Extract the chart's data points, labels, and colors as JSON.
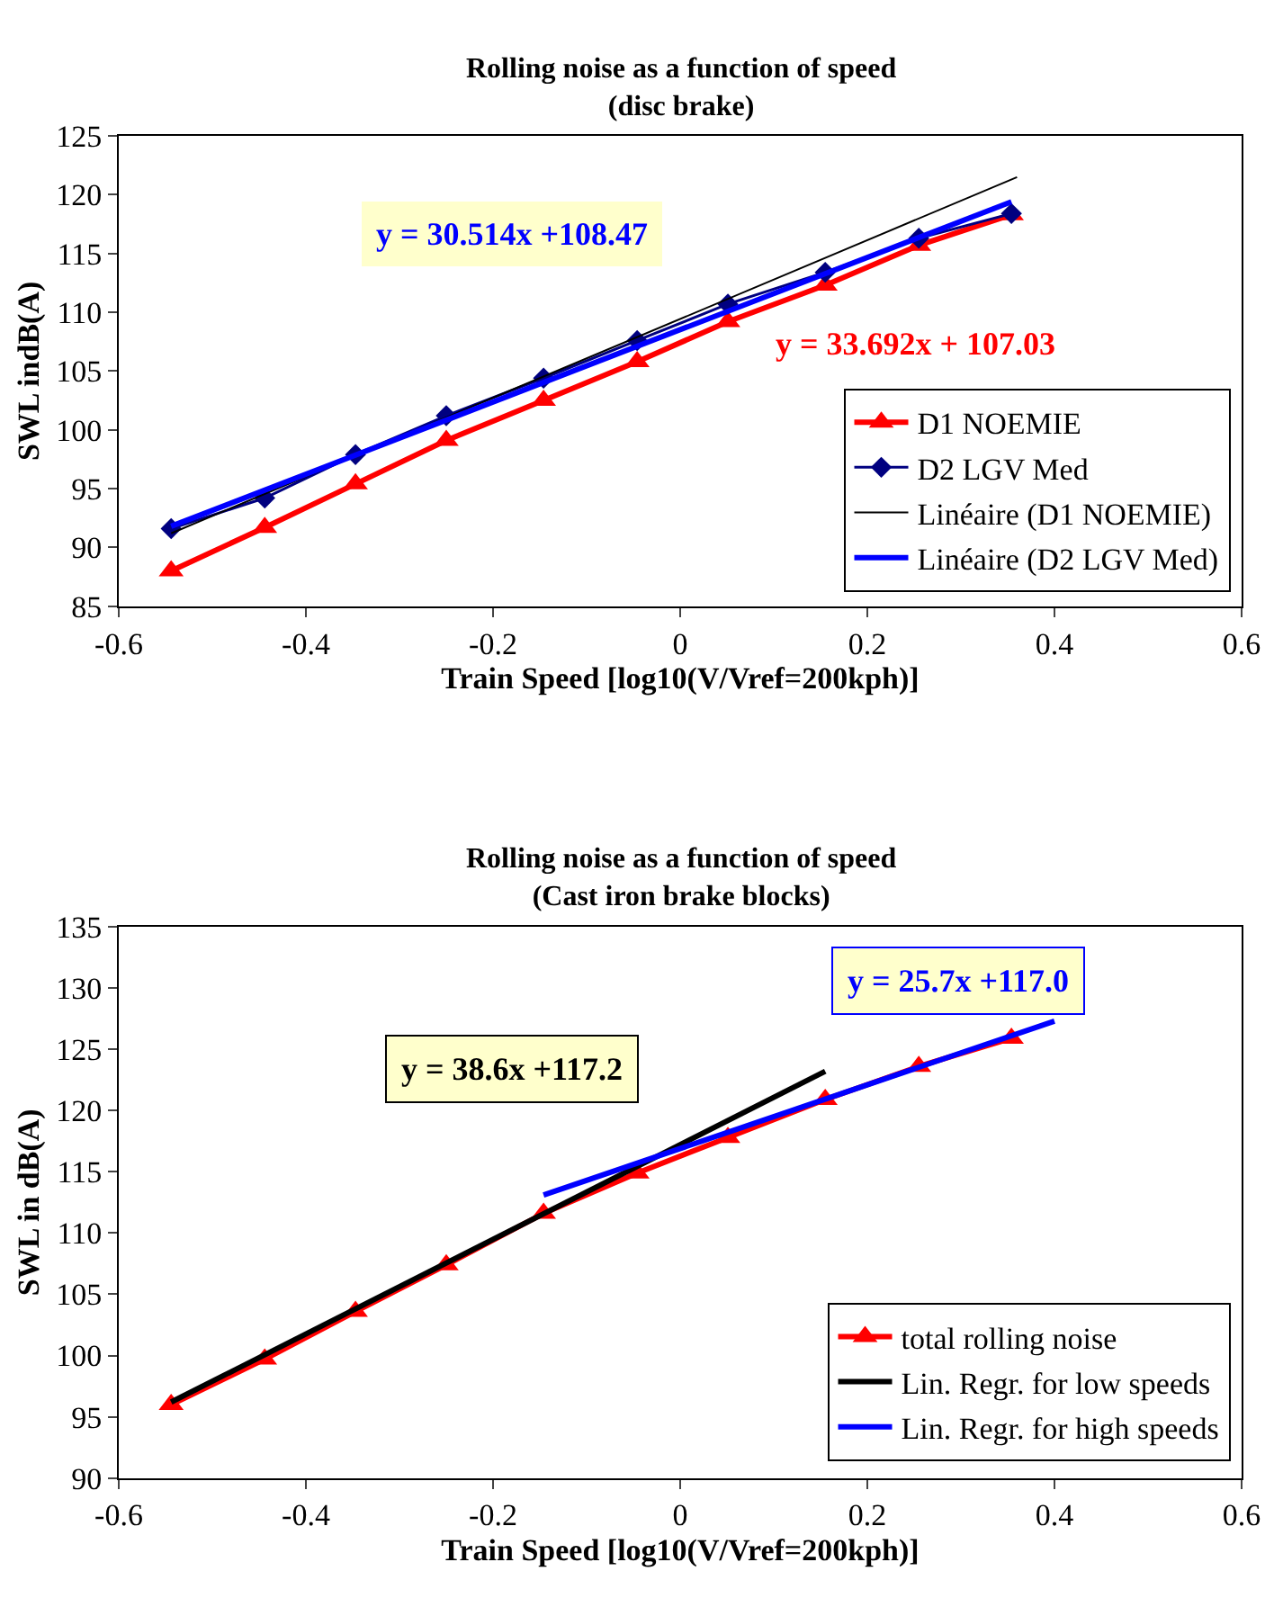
{
  "chart_data": [
    {
      "type": "line",
      "title": "Rolling noise as a function of speed",
      "subtitle": "(disc brake)",
      "xlabel": "Train Speed [log10(V/Vref=200kph)]",
      "ylabel": "SWL indB(A)",
      "xlim": [
        -0.6,
        0.6
      ],
      "xticks": [
        -0.6,
        -0.4,
        -0.2,
        0,
        0.2,
        0.4,
        0.6
      ],
      "ylim": [
        85,
        125
      ],
      "yticks": [
        85,
        90,
        95,
        100,
        105,
        110,
        115,
        120,
        125
      ],
      "legend": "bottom right",
      "series": [
        {
          "name": "D1 NOEMIE",
          "color": "#ff0000",
          "marker": "triangle",
          "x": [
            -0.544,
            -0.444,
            -0.347,
            -0.25,
            -0.146,
            -0.046,
            0.051,
            0.155,
            0.255,
            0.354
          ],
          "values": [
            88.0,
            91.7,
            95.4,
            99.1,
            102.5,
            105.8,
            109.2,
            112.3,
            115.7,
            118.3
          ]
        },
        {
          "name": "D2 LGV Med",
          "color": "#000080",
          "marker": "diamond",
          "x": [
            -0.544,
            -0.444,
            -0.347,
            -0.25,
            -0.146,
            -0.046,
            0.051,
            0.155,
            0.255,
            0.354
          ],
          "values": [
            91.6,
            94.2,
            97.9,
            101.2,
            104.4,
            107.6,
            110.7,
            113.4,
            116.3,
            118.4
          ]
        },
        {
          "name": "Linéaire (D1 NOEMIE)",
          "color": "#000000",
          "marker": "none",
          "x": [
            -0.544,
            0.36
          ],
          "values": [
            91.2,
            121.5
          ]
        },
        {
          "name": "Linéaire (D2 LGV Med)",
          "color": "#0000ff",
          "marker": "none",
          "x": [
            -0.544,
            0.354
          ],
          "values": [
            91.8,
            119.4
          ]
        }
      ],
      "annotations": [
        "y = 30.514x +108.47",
        "y = 33.692x + 107.03"
      ]
    },
    {
      "type": "line",
      "title": "Rolling noise as a function of speed",
      "subtitle": "(Cast iron brake blocks)",
      "xlabel": "Train Speed [log10(V/Vref=200kph)]",
      "ylabel": "SWL in dB(A)",
      "xlim": [
        -0.6,
        0.6
      ],
      "xticks": [
        -0.6,
        -0.4,
        -0.2,
        0,
        0.2,
        0.4,
        0.6
      ],
      "ylim": [
        90,
        135
      ],
      "yticks": [
        90,
        95,
        100,
        105,
        110,
        115,
        120,
        125,
        130,
        135
      ],
      "legend": "bottom right",
      "series": [
        {
          "name": "total rolling noise",
          "color": "#ff0000",
          "marker": "triangle",
          "x": [
            -0.544,
            -0.444,
            -0.347,
            -0.25,
            -0.146,
            -0.046,
            0.051,
            0.155,
            0.255,
            0.354
          ],
          "values": [
            96.0,
            99.7,
            103.6,
            107.4,
            111.6,
            114.9,
            117.8,
            120.9,
            123.6,
            125.9
          ]
        },
        {
          "name": "Lin. Regr. for low speeds",
          "color": "#000000",
          "marker": "none",
          "x": [
            -0.544,
            0.155
          ],
          "values": [
            96.2,
            123.2
          ]
        },
        {
          "name": "Lin. Regr. for high speeds",
          "color": "#0000ff",
          "marker": "none",
          "x": [
            -0.146,
            0.4
          ],
          "values": [
            113.1,
            127.3
          ]
        }
      ],
      "annotations": [
        "y = 38.6x +117.2",
        "y = 25.7x +117.0"
      ]
    }
  ]
}
